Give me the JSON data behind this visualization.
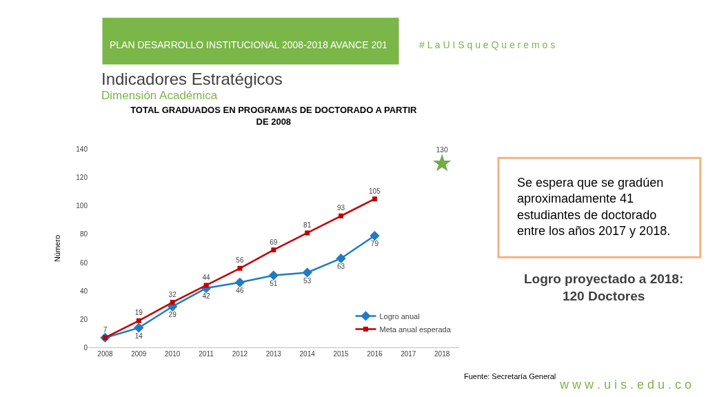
{
  "chart_data": {
    "type": "line",
    "title": "TOTAL GRADUADOS EN PROGRAMAS DE DOCTORADO A PARTIR DE 2008",
    "ylabel": "Número",
    "categories": [
      "2008",
      "2009",
      "2010",
      "2011",
      "2012",
      "2013",
      "2014",
      "2015",
      "2016",
      "2017",
      "2018"
    ],
    "series": [
      {
        "name": "Logro anual",
        "color": "#1f7bc4",
        "marker": "diamond",
        "values": [
          7,
          14,
          29,
          42,
          46,
          51,
          53,
          63,
          79,
          null,
          null
        ],
        "value_labels": [
          null,
          "14",
          "29",
          "42",
          "46",
          "51",
          "53",
          "63",
          "79",
          null,
          null
        ]
      },
      {
        "name": "Meta anual esperada",
        "color": "#c00000",
        "marker": "square",
        "values": [
          7,
          19,
          32,
          44,
          56,
          69,
          81,
          93,
          105,
          null,
          null
        ],
        "value_labels": [
          "7",
          "19",
          "32",
          "44",
          "56",
          "69",
          "81",
          "93",
          "105",
          null,
          null
        ]
      },
      {
        "type": "scatter",
        "color": "#70ad47",
        "marker": "star",
        "values": [
          null,
          null,
          null,
          null,
          null,
          null,
          null,
          null,
          null,
          null,
          130
        ],
        "value_labels": [
          null,
          null,
          null,
          null,
          null,
          null,
          null,
          null,
          null,
          null,
          "130"
        ]
      }
    ],
    "ylim": [
      0,
      140
    ],
    "yticks": [
      0,
      20,
      40,
      60,
      80,
      100,
      120,
      140
    ],
    "grid": false,
    "legend": "bottom right",
    "annotations": [
      "PLAN DESARROLLO INSTITUCIONAL 2008-2018 AVANCE 201",
      "# L a U I S q u e Q u e r e m o s",
      "Indicadores Estratégicos",
      "Dimensión Académica",
      "Se espera que se gradúen aproximadamente 41 estudiantes de doctorado entre los años 2017 y 2018.",
      "Logro proyectado a 2018:\n120 Doctores",
      "Fuente: Secretaría General",
      "w w w . u i s . e d u . c o"
    ]
  }
}
